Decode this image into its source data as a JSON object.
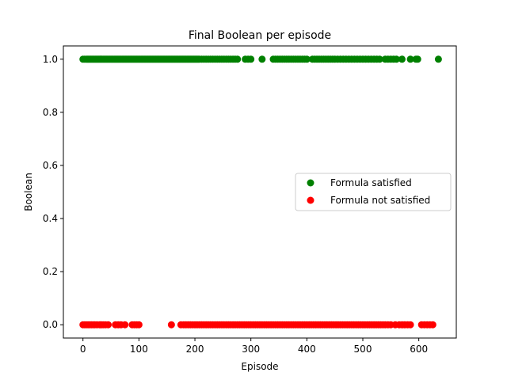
{
  "chart_data": {
    "type": "scatter",
    "title": "Final Boolean per episode",
    "xlabel": "Episode",
    "ylabel": "Boolean",
    "xlim": [
      -35,
      667
    ],
    "ylim": [
      -0.05,
      1.05
    ],
    "xticks": [
      0,
      100,
      200,
      300,
      400,
      500,
      600
    ],
    "yticks": [
      0.0,
      0.2,
      0.4,
      0.6,
      0.8,
      1.0
    ],
    "ytick_labels": [
      "0.0",
      "0.2",
      "0.4",
      "0.6",
      "0.8",
      "1.0"
    ],
    "grid": false,
    "legend_position": "center-right",
    "series": [
      {
        "name": "Formula satisfied",
        "color": "#008000",
        "y": 1.0,
        "x": [
          0,
          3,
          6,
          8,
          10,
          12,
          14,
          16,
          18,
          20,
          22,
          24,
          26,
          28,
          30,
          32,
          34,
          36,
          38,
          40,
          42,
          44,
          46,
          48,
          50,
          52,
          54,
          56,
          58,
          60,
          62,
          64,
          66,
          68,
          70,
          72,
          74,
          76,
          78,
          80,
          82,
          84,
          86,
          88,
          90,
          92,
          94,
          96,
          98,
          100,
          102,
          104,
          106,
          108,
          110,
          112,
          114,
          116,
          118,
          120,
          122,
          124,
          126,
          128,
          130,
          132,
          134,
          136,
          138,
          140,
          142,
          144,
          146,
          148,
          150,
          152,
          154,
          156,
          158,
          160,
          162,
          164,
          166,
          168,
          170,
          172,
          174,
          176,
          178,
          180,
          182,
          184,
          186,
          188,
          190,
          192,
          194,
          196,
          198,
          200,
          202,
          204,
          206,
          208,
          212,
          216,
          220,
          224,
          228,
          232,
          236,
          240,
          244,
          248,
          252,
          256,
          260,
          264,
          268,
          272,
          276,
          290,
          295,
          300,
          320,
          340,
          344,
          348,
          352,
          356,
          360,
          364,
          368,
          372,
          376,
          380,
          384,
          388,
          392,
          396,
          400,
          410,
          414,
          418,
          422,
          426,
          430,
          434,
          438,
          442,
          446,
          450,
          455,
          460,
          465,
          470,
          475,
          480,
          485,
          490,
          495,
          500,
          505,
          510,
          515,
          520,
          525,
          530,
          540,
          545,
          550,
          555,
          560,
          570,
          585,
          595,
          598,
          635
        ]
      },
      {
        "name": "Formula not satisfied",
        "color": "#ff0000",
        "y": 0.0,
        "x": [
          0,
          3,
          6,
          9,
          12,
          15,
          18,
          21,
          25,
          30,
          33,
          36,
          40,
          45,
          58,
          63,
          68,
          75,
          88,
          92,
          96,
          100,
          158,
          175,
          180,
          184,
          188,
          192,
          196,
          200,
          204,
          208,
          212,
          216,
          220,
          224,
          228,
          232,
          236,
          240,
          244,
          248,
          252,
          256,
          260,
          264,
          268,
          272,
          276,
          280,
          284,
          288,
          292,
          296,
          300,
          304,
          308,
          312,
          316,
          320,
          324,
          328,
          332,
          336,
          340,
          344,
          348,
          352,
          356,
          360,
          364,
          368,
          372,
          376,
          380,
          384,
          388,
          392,
          396,
          400,
          404,
          408,
          412,
          416,
          420,
          424,
          428,
          432,
          436,
          440,
          444,
          448,
          452,
          456,
          460,
          464,
          468,
          472,
          476,
          480,
          484,
          488,
          492,
          496,
          500,
          504,
          508,
          512,
          516,
          520,
          524,
          528,
          532,
          536,
          540,
          545,
          550,
          558,
          565,
          570,
          575,
          580,
          585,
          605,
          610,
          615,
          620,
          625
        ]
      }
    ]
  }
}
